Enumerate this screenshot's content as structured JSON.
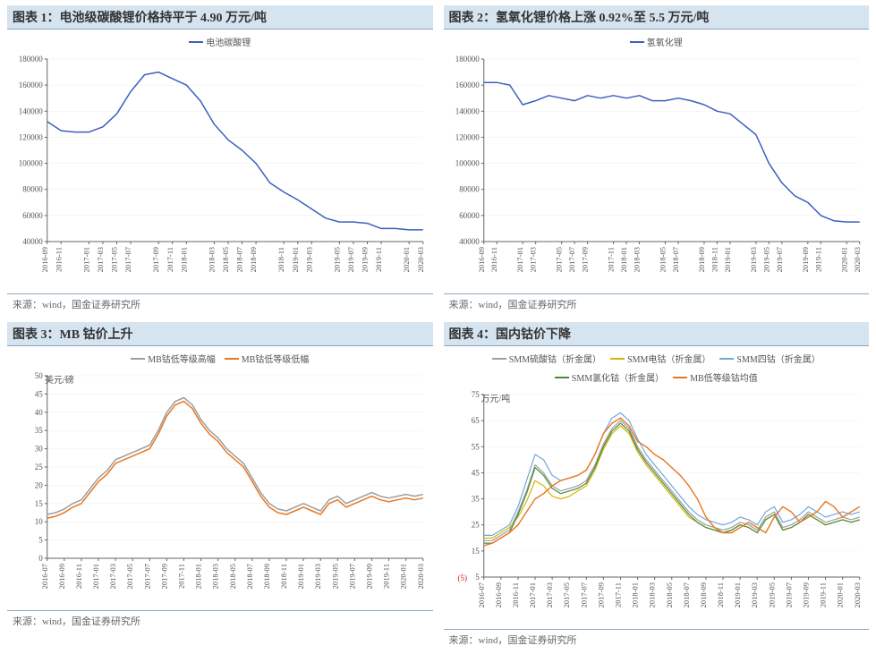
{
  "source_text": "来源：wind，国金证券研究所",
  "colors": {
    "title_bar_bg": "#d6e4f0",
    "title_bar_border": "#8aa7c7",
    "axis": "#666666",
    "grid": "#d9d9d9",
    "tick_text": "#555555",
    "blue": "#3c5fbf",
    "gray": "#9e9e9e",
    "orange": "#e87722",
    "yellow": "#d6b400",
    "lightblue": "#6fa8dc",
    "green": "#4a8a3a",
    "small_red": "#d02020"
  },
  "x_labels_A": [
    "2016-09",
    "2016-11",
    "2017-01",
    "2017-03",
    "2017-05",
    "2017-07",
    "2017-09",
    "2017-11",
    "2018-01",
    "2018-03",
    "2018-05",
    "2018-07",
    "2018-09",
    "2018-11",
    "2019-01",
    "2019-03",
    "2019-05",
    "2019-07",
    "2019-09",
    "2019-11",
    "2020-01",
    "2020-03"
  ],
  "x_labels_B": [
    "2016-07",
    "2016-09",
    "2016-11",
    "2017-01",
    "2017-03",
    "2017-05",
    "2017-07",
    "2017-09",
    "2017-11",
    "2018-01",
    "2018-03",
    "2018-05",
    "2018-07",
    "2018-09",
    "2018-11",
    "2019-01",
    "2019-03",
    "2019-05",
    "2019-07",
    "2019-09",
    "2019-11",
    "2020-01",
    "2020-03"
  ],
  "panels": [
    {
      "id": "chart1",
      "title": "图表 1：电池级碳酸锂价格持平于 4.90 万元/吨",
      "type": "line",
      "y_ticks": [
        40000,
        60000,
        80000,
        100000,
        120000,
        140000,
        160000,
        180000
      ],
      "ylim": [
        40000,
        180000
      ],
      "x_set": "A",
      "legend": [
        {
          "label": "电池碳酸锂",
          "color": "#3c5fbf"
        }
      ],
      "series": [
        {
          "color": "#3c5fbf",
          "width": 1.5,
          "values": [
            132000,
            125000,
            124000,
            124000,
            128000,
            138000,
            155000,
            168000,
            170000,
            165000,
            160000,
            148000,
            130000,
            118000,
            110000,
            100000,
            85000,
            78000,
            72000,
            65000,
            58000,
            55000,
            55000,
            54000,
            50000,
            50000,
            49000,
            49000
          ]
        }
      ]
    },
    {
      "id": "chart2",
      "title": "图表 2：氢氧化锂价格上涨 0.92%至 5.5 万元/吨",
      "type": "line",
      "y_ticks": [
        40000,
        60000,
        80000,
        100000,
        120000,
        140000,
        160000,
        180000
      ],
      "ylim": [
        40000,
        180000
      ],
      "x_set": "A",
      "legend": [
        {
          "label": "氢氧化锂",
          "color": "#3c5fbf"
        }
      ],
      "series": [
        {
          "color": "#3c5fbf",
          "width": 1.5,
          "values": [
            162000,
            162000,
            160000,
            145000,
            148000,
            152000,
            150000,
            148000,
            152000,
            150000,
            152000,
            150000,
            152000,
            148000,
            148000,
            150000,
            148000,
            145000,
            140000,
            138000,
            130000,
            122000,
            100000,
            85000,
            75000,
            70000,
            60000,
            56000,
            55000,
            55000
          ]
        }
      ]
    },
    {
      "id": "chart3",
      "title": "图表 3：MB 钴价上升",
      "type": "line",
      "y_label": "美元/磅",
      "y_ticks": [
        0,
        5,
        10,
        15,
        20,
        25,
        30,
        35,
        40,
        45,
        50
      ],
      "ylim": [
        0,
        50
      ],
      "x_set": "B",
      "legend": [
        {
          "label": "MB钴低等级高幅",
          "color": "#9e9e9e"
        },
        {
          "label": "MB钴低等级低幅",
          "color": "#e87722"
        }
      ],
      "series": [
        {
          "color": "#9e9e9e",
          "width": 1.5,
          "values": [
            12,
            12.5,
            13.5,
            15,
            16,
            19,
            22,
            24,
            27,
            28,
            29,
            30,
            31,
            35,
            40,
            43,
            44,
            42,
            38,
            35,
            33,
            30,
            28,
            26,
            22,
            18,
            15,
            13.5,
            13,
            14,
            15,
            14,
            13,
            16,
            17,
            15,
            16,
            17,
            18,
            17,
            16.5,
            17,
            17.5,
            17,
            17.5
          ]
        },
        {
          "color": "#e87722",
          "width": 1.5,
          "values": [
            11,
            11.5,
            12.5,
            14,
            15,
            18,
            21,
            23,
            26,
            27,
            28,
            29,
            30,
            34,
            39,
            42,
            43,
            41,
            37,
            34,
            32,
            29,
            27,
            25,
            21,
            17,
            14,
            12.5,
            12,
            13,
            14,
            13,
            12,
            15,
            16,
            14,
            15,
            16,
            17,
            16,
            15.5,
            16,
            16.5,
            16,
            16.5
          ]
        }
      ]
    },
    {
      "id": "chart4",
      "title": "图表 4：国内钴价下降",
      "type": "line",
      "y_label": "万元/吨",
      "y_ticks": [
        5,
        15,
        25,
        35,
        45,
        55,
        65,
        75
      ],
      "ylim": [
        5,
        75
      ],
      "x_set": "B",
      "small_red_label": "(5)",
      "legend": [
        {
          "label": "SMM硫酸钴（折金属）",
          "color": "#9e9e9e"
        },
        {
          "label": "SMM电钴（折金属）",
          "color": "#d6b400"
        },
        {
          "label": "SMM四钴（折金属）",
          "color": "#6fa8dc"
        },
        {
          "label": "SMM氯化钴（折金属）",
          "color": "#4a8a3a"
        },
        {
          "label": "MB低等级钴均值",
          "color": "#e87722"
        }
      ],
      "series": [
        {
          "color": "#9e9e9e",
          "width": 1.2,
          "values": [
            19,
            19,
            21,
            23,
            30,
            38,
            48,
            45,
            40,
            38,
            39,
            40,
            42,
            48,
            56,
            62,
            65,
            62,
            55,
            50,
            46,
            42,
            38,
            34,
            30,
            27,
            25,
            24,
            23,
            24,
            26,
            25,
            23,
            28,
            30,
            24,
            25,
            27,
            30,
            28,
            26,
            27,
            28,
            27,
            28
          ]
        },
        {
          "color": "#d6b400",
          "width": 1.2,
          "values": [
            20,
            20,
            22,
            24,
            28,
            34,
            42,
            40,
            36,
            35,
            36,
            38,
            40,
            46,
            54,
            60,
            63,
            60,
            53,
            48,
            44,
            40,
            36,
            32,
            28,
            26,
            24,
            23,
            22,
            23,
            25,
            24,
            22,
            27,
            29,
            23,
            24,
            26,
            29,
            27,
            25,
            26,
            27,
            26,
            27
          ]
        },
        {
          "color": "#6fa8dc",
          "width": 1.2,
          "values": [
            21,
            21,
            23,
            25,
            32,
            42,
            52,
            50,
            44,
            42,
            43,
            44,
            46,
            52,
            60,
            66,
            68,
            65,
            58,
            52,
            48,
            44,
            40,
            36,
            32,
            29,
            27,
            26,
            25,
            26,
            28,
            27,
            25,
            30,
            32,
            26,
            27,
            29,
            32,
            30,
            28,
            29,
            30,
            29,
            30
          ]
        },
        {
          "color": "#4a8a3a",
          "width": 1.2,
          "values": [
            18,
            18,
            20,
            22,
            29,
            37,
            47,
            44,
            39,
            37,
            38,
            39,
            41,
            47,
            55,
            61,
            64,
            61,
            54,
            49,
            45,
            41,
            37,
            33,
            29,
            26,
            24,
            23,
            22,
            23,
            25,
            24,
            22,
            27,
            29,
            23,
            24,
            26,
            29,
            27,
            25,
            26,
            27,
            26,
            27
          ]
        },
        {
          "color": "#e87722",
          "width": 1.4,
          "values": [
            17,
            18,
            20,
            22,
            25,
            30,
            35,
            37,
            40,
            42,
            43,
            44,
            46,
            52,
            60,
            64,
            66,
            63,
            57,
            55,
            52,
            50,
            47,
            44,
            40,
            35,
            28,
            24,
            22,
            22,
            24,
            26,
            24,
            22,
            28,
            32,
            30,
            26,
            28,
            30,
            34,
            32,
            28,
            30,
            32
          ]
        }
      ]
    }
  ]
}
